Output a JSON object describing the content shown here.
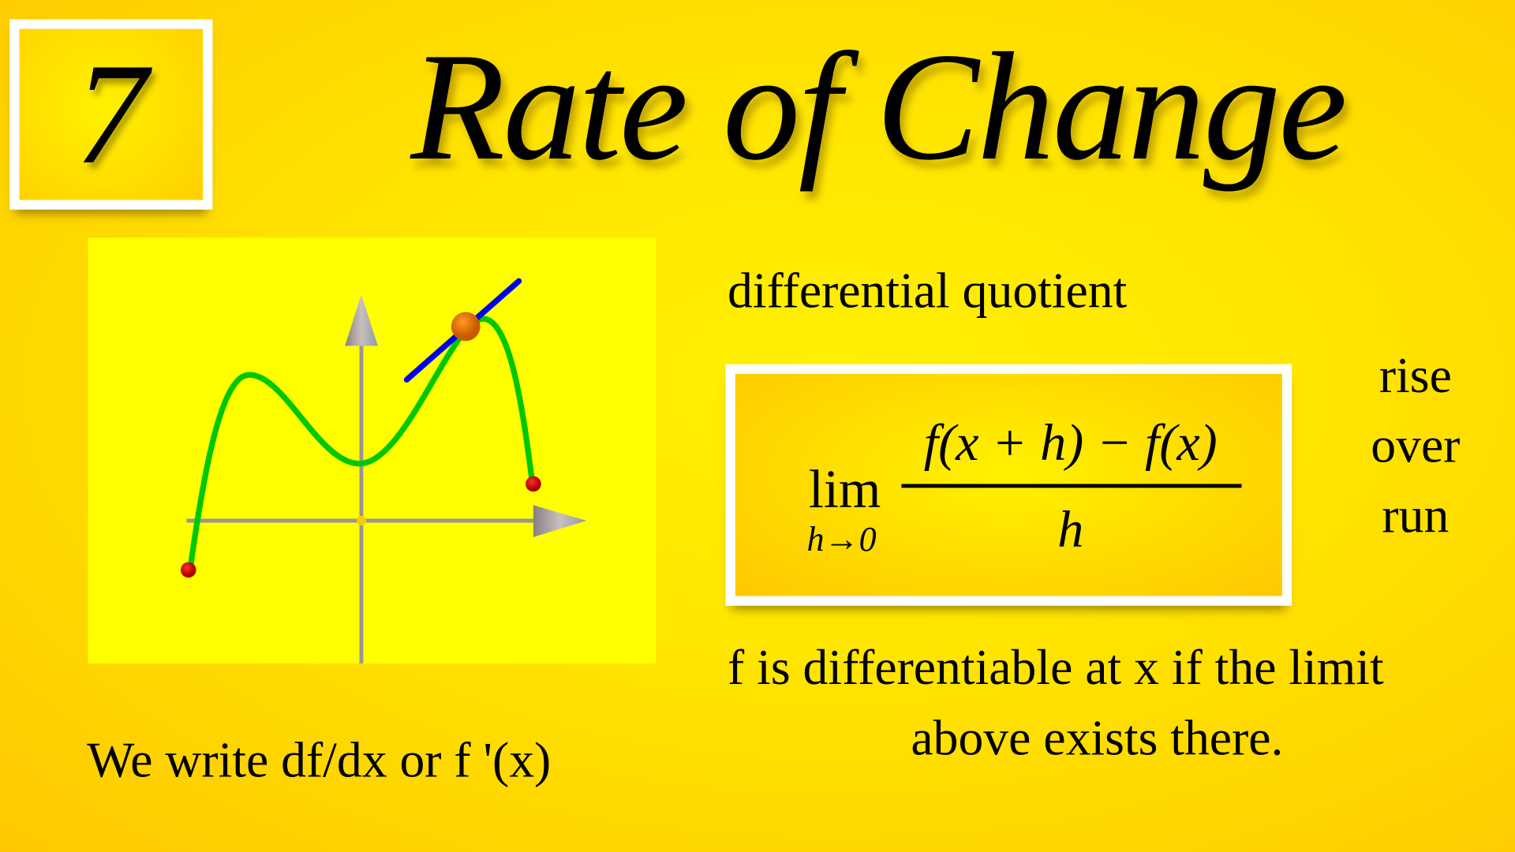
{
  "badge": {
    "number": "7"
  },
  "title": "Rate of Change",
  "subtitle": "differential quotient",
  "formula": {
    "lim": "lim",
    "sub": "h→0",
    "numerator": "f(x + h) − f(x)",
    "denominator": "h"
  },
  "side_words": [
    "rise",
    "over",
    "run"
  ],
  "statement": [
    "f is differentiable at x if  the limit",
    "above exists there."
  ],
  "notation": "We write df/dx or f '(x)",
  "colors": {
    "background": "#ffd500",
    "graph_panel": "#ffff00",
    "curve": "#00cc00",
    "tangent": "#0000ee",
    "point": "#ff7a00",
    "endpoints": "#dd0000"
  }
}
